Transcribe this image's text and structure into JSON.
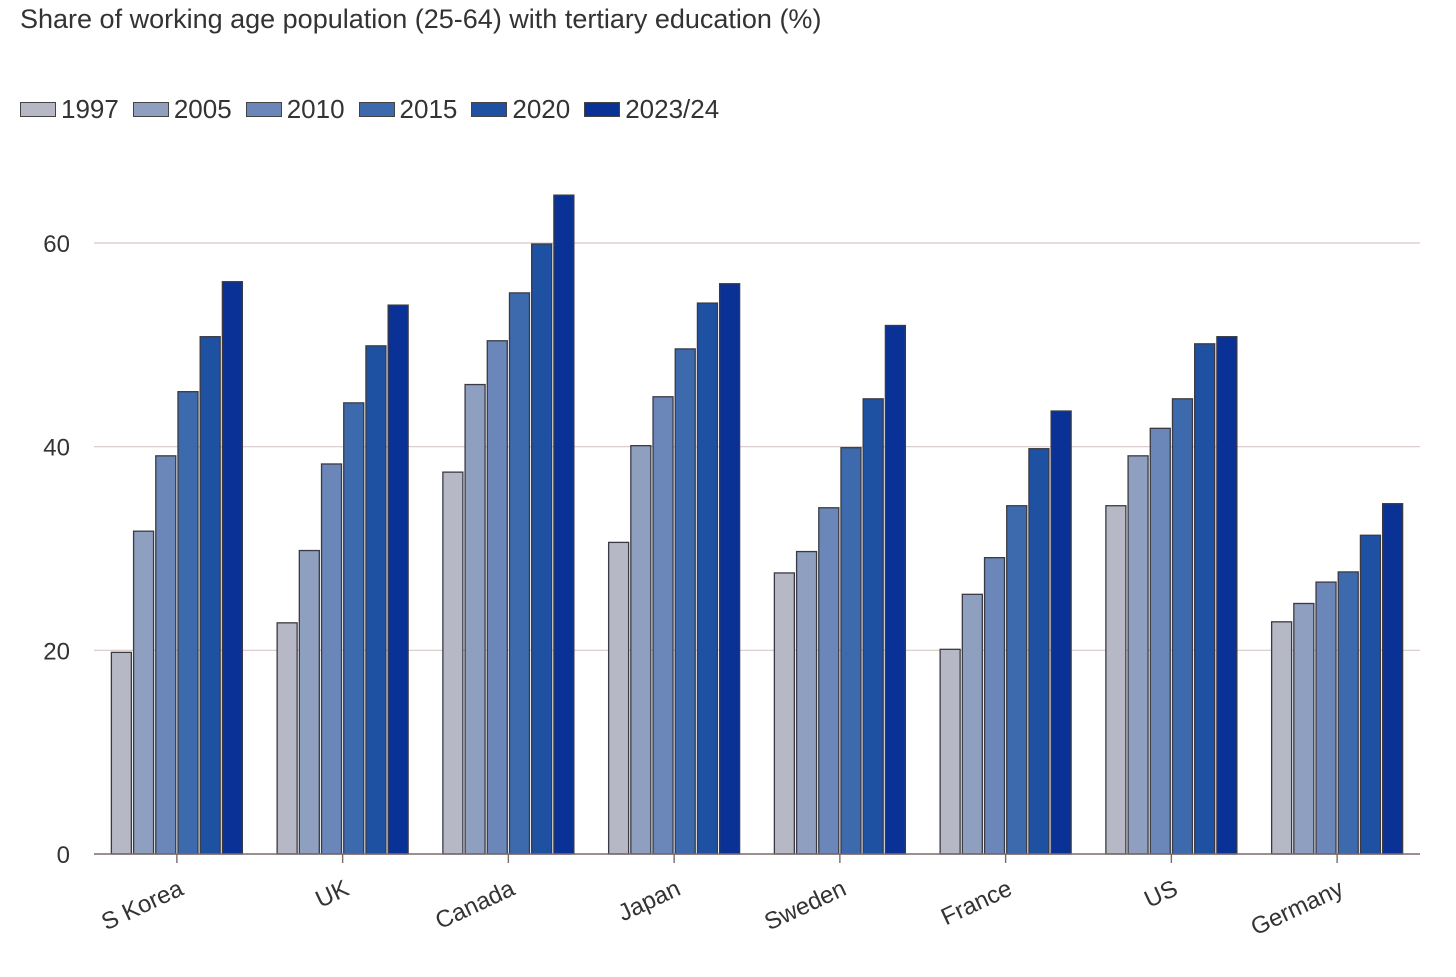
{
  "chart_data": {
    "type": "bar",
    "title": "Share of working age population (25-64) with tertiary education (%)",
    "xlabel": "",
    "ylabel": "",
    "ylim": [
      0,
      60
    ],
    "yticks": [
      0,
      20,
      40,
      60
    ],
    "grid": true,
    "legend_position": "top-left",
    "categories": [
      "S Korea",
      "UK",
      "Canada",
      "Japan",
      "Sweden",
      "France",
      "US",
      "Germany"
    ],
    "series": [
      {
        "name": "1997",
        "color": "#b6b8c6",
        "values": [
          19.8,
          22.7,
          37.5,
          30.6,
          27.6,
          20.1,
          34.2,
          22.8
        ]
      },
      {
        "name": "2005",
        "color": "#8e9fc0",
        "values": [
          31.7,
          29.8,
          46.1,
          40.1,
          29.7,
          25.5,
          39.1,
          24.6
        ]
      },
      {
        "name": "2010",
        "color": "#6b86b8",
        "values": [
          39.1,
          38.3,
          50.4,
          44.9,
          34.0,
          29.1,
          41.8,
          26.7
        ]
      },
      {
        "name": "2015",
        "color": "#3d6aac",
        "values": [
          45.4,
          44.3,
          55.1,
          49.6,
          39.9,
          34.2,
          44.7,
          27.7
        ]
      },
      {
        "name": "2020",
        "color": "#1f51a2",
        "values": [
          50.8,
          49.9,
          59.9,
          54.1,
          44.7,
          39.8,
          50.1,
          31.3
        ]
      },
      {
        "name": "2023/24",
        "color": "#0a3296",
        "values": [
          56.2,
          53.9,
          64.7,
          56.0,
          51.9,
          43.5,
          50.8,
          34.4
        ]
      }
    ]
  }
}
